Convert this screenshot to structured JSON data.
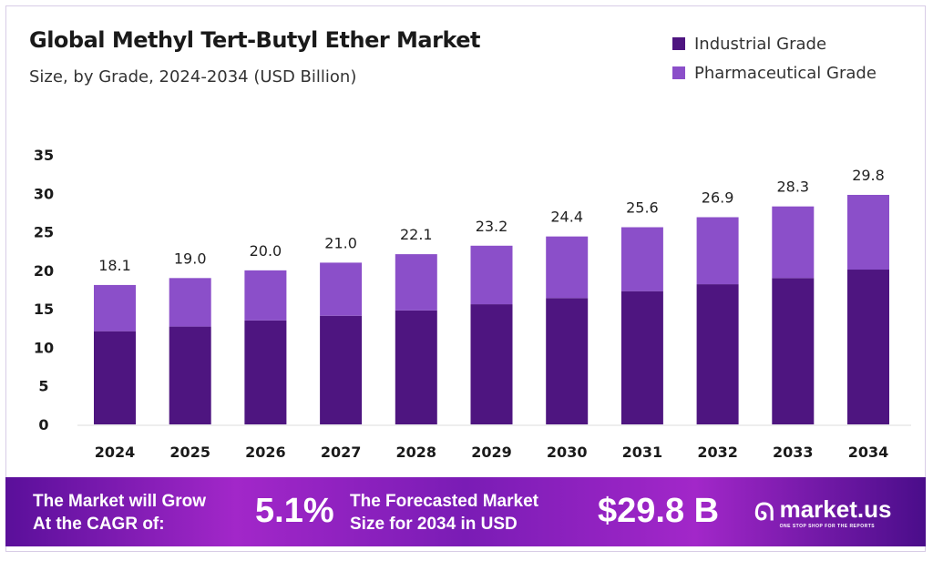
{
  "chart_data": {
    "type": "bar",
    "stacked": true,
    "title": "Global Methyl Tert-Butyl Ether Market",
    "subtitle": "Size, by Grade, 2024-2034 (USD Billion)",
    "categories": [
      "2024",
      "2025",
      "2026",
      "2027",
      "2028",
      "2029",
      "2030",
      "2031",
      "2032",
      "2033",
      "2034"
    ],
    "series": [
      {
        "name": "Industrial Grade",
        "color": "#4e1580",
        "values": [
          12.1,
          12.7,
          13.5,
          14.1,
          14.8,
          15.6,
          16.4,
          17.3,
          18.2,
          19.0,
          20.1
        ]
      },
      {
        "name": "Pharmaceutical Grade",
        "color": "#8b4fc9",
        "values": [
          6.0,
          6.3,
          6.5,
          6.9,
          7.3,
          7.6,
          8.0,
          8.3,
          8.7,
          9.3,
          9.7
        ]
      }
    ],
    "totals": [
      "18.1",
      "19.0",
      "20.0",
      "21.0",
      "22.1",
      "23.2",
      "24.4",
      "25.6",
      "26.9",
      "28.3",
      "29.8"
    ],
    "ylim": [
      0,
      35
    ],
    "yticks": [
      "0",
      "5",
      "10",
      "15",
      "20",
      "25",
      "30",
      "35"
    ],
    "grid": false,
    "legend": "top-right"
  },
  "footer": {
    "cagr_label_1": "The Market will Grow",
    "cagr_label_2": "At the CAGR of:",
    "cagr_value": "5.1%",
    "forecast_label_1": "The Forecasted Market",
    "forecast_label_2": "Size for 2034 in USD",
    "forecast_value": "$29.8 B",
    "logo_name": "market.us",
    "logo_tagline": "ONE STOP SHOP FOR THE REPORTS"
  }
}
